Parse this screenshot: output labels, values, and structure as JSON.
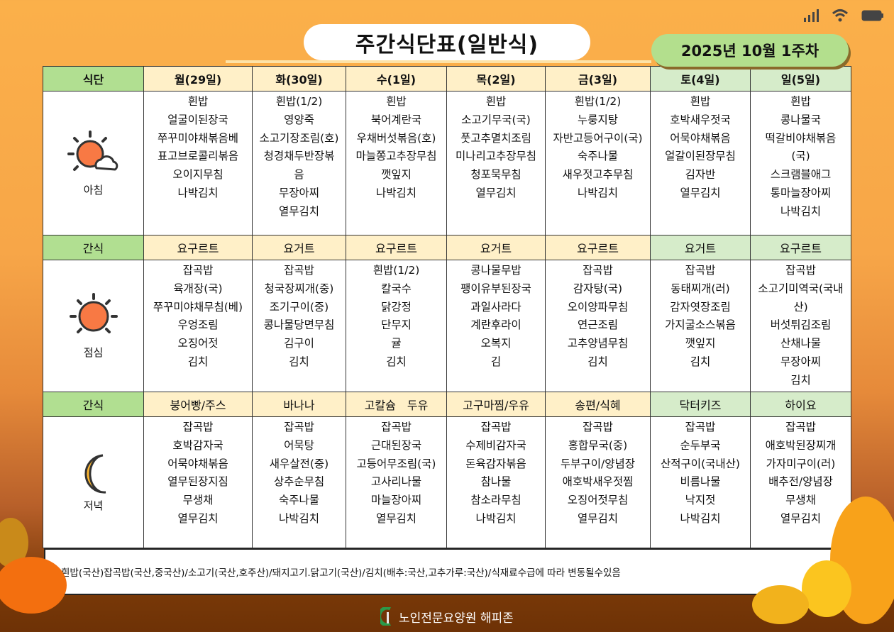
{
  "status_bar": {
    "icons": [
      "signal-icon",
      "wifi-icon",
      "battery-icon"
    ]
  },
  "title": "주간식단표(일반식)",
  "week_badge": "2025년 10월 1주차",
  "table": {
    "corner_label": "식단",
    "snack_label": "간식",
    "meal_labels": {
      "breakfast": "아침",
      "lunch": "점심",
      "dinner": "저녁"
    },
    "days": [
      {
        "header": "월(29일)",
        "weekend": false,
        "breakfast": [
          "흰밥",
          "얼굴이된장국",
          "쭈꾸미야채볶음베",
          "표고브로콜리볶음",
          "오이지무침",
          "나박김치"
        ],
        "snack1": "요구르트",
        "lunch": [
          "잡곡밥",
          "육개장(국)",
          "쭈꾸미야채무침(베)",
          "우엉조림",
          "오징어젓",
          "김치"
        ],
        "snack2": "붕어빵/주스",
        "dinner": [
          "잡곡밥",
          "호박감자국",
          "어묵야채볶음",
          "열무된장지짐",
          "무생채",
          "열무김치"
        ]
      },
      {
        "header": "화(30일)",
        "weekend": false,
        "breakfast": [
          "흰밥(1/2)",
          "영양죽",
          "소고기장조림(호)",
          "청경채두반장볶",
          "음",
          "무장아찌",
          "열무김치"
        ],
        "snack1": "요거트",
        "lunch": [
          "잡곡밥",
          "청국장찌개(중)",
          "조기구이(중)",
          "콩나물당면무침",
          "김구이",
          "김치"
        ],
        "snack2": "바나나",
        "dinner": [
          "잡곡밥",
          "어묵탕",
          "새우살전(중)",
          "상추순무침",
          "숙주나물",
          "나박김치"
        ]
      },
      {
        "header": "수(1일)",
        "weekend": false,
        "breakfast": [
          "흰밥",
          "북어계란국",
          "우채버섯볶음(호)",
          "마늘쫑고추장무침",
          "깻잎지",
          "나박김치"
        ],
        "snack1": "요구르트",
        "lunch": [
          "흰밥(1/2)",
          "칼국수",
          "닭강정",
          "단무지",
          "귤",
          "김치"
        ],
        "snack2": "고칼슘　두유",
        "dinner": [
          "잡곡밥",
          "근대된장국",
          "고등어무조림(국)",
          "고사리나물",
          "마늘장아찌",
          "열무김치"
        ]
      },
      {
        "header": "목(2일)",
        "weekend": false,
        "breakfast": [
          "흰밥",
          "소고기무국(국)",
          "풋고추멸치조림",
          "미나리고추장무침",
          "청포묵무침",
          "열무김치"
        ],
        "snack1": "요거트",
        "lunch": [
          "콩나물무밥",
          "팽이유부된장국",
          "과일사라다",
          "계란후라이",
          "오복지",
          "김"
        ],
        "snack2": "고구마찜/우유",
        "dinner": [
          "잡곡밥",
          "수제비감자국",
          "돈육감자볶음",
          "참나물",
          "참소라무침",
          "나박김치"
        ]
      },
      {
        "header": "금(3일)",
        "weekend": false,
        "breakfast": [
          "흰밥(1/2)",
          "누룽지탕",
          "자반고등어구이(국)",
          "숙주나물",
          "새우젓고추무침",
          "나박김치"
        ],
        "snack1": "요구르트",
        "lunch": [
          "잡곡밥",
          "감자탕(국)",
          "오이양파무침",
          "연근조림",
          "고추양념무침",
          "김치"
        ],
        "snack2": "송편/식혜",
        "dinner": [
          "잡곡밥",
          "홍합무국(중)",
          "두부구이/양념장",
          "애호박새우젓찜",
          "오징어젓무침",
          "열무김치"
        ]
      },
      {
        "header": "토(4일)",
        "weekend": true,
        "breakfast": [
          "흰밥",
          "호박새우젓국",
          "어묵야채볶음",
          "얼갈이된장무침",
          "김자반",
          "열무김치"
        ],
        "snack1": "요거트",
        "lunch": [
          "잡곡밥",
          "동태찌개(러)",
          "감자엿장조림",
          "가지굴소스볶음",
          "깻잎지",
          "김치"
        ],
        "snack2": "닥터키즈",
        "dinner": [
          "잡곡밥",
          "순두부국",
          "산적구이(국내산)",
          "비름나물",
          "낙지젓",
          "나박김치"
        ]
      },
      {
        "header": "일(5일)",
        "weekend": true,
        "breakfast": [
          "흰밥",
          "콩나물국",
          "떡갈비야채볶음",
          "(국)",
          "스크램블애그",
          "통마늘장아찌",
          "나박김치"
        ],
        "snack1": "요구르트",
        "lunch": [
          "잡곡밥",
          "소고기미역국(국내",
          "산)",
          "버섯튀김조림",
          "산채나물",
          "무장아찌",
          "김치"
        ],
        "snack2": "하이요",
        "dinner": [
          "잡곡밥",
          "애호박된장찌개",
          "가자미구이(러)",
          "배추전/양념장",
          "무생채",
          "열무김치"
        ]
      }
    ]
  },
  "footer_note": "흰밥(국산)잡곡밥(국산,중국산)/소고기(국산,호주산)/돼지고기.닭고기(국산)/김치(배추:국산,고추가루:국산)/식재료수급에 따라 변동될수있음",
  "brand": "노인전문요양원 해피존",
  "colors": {
    "label_green": "#b1df91",
    "weekday_header": "#fff0c8",
    "weekend_header": "#d6ecca",
    "sun": "#f87944",
    "moon": "#fbb52f"
  }
}
